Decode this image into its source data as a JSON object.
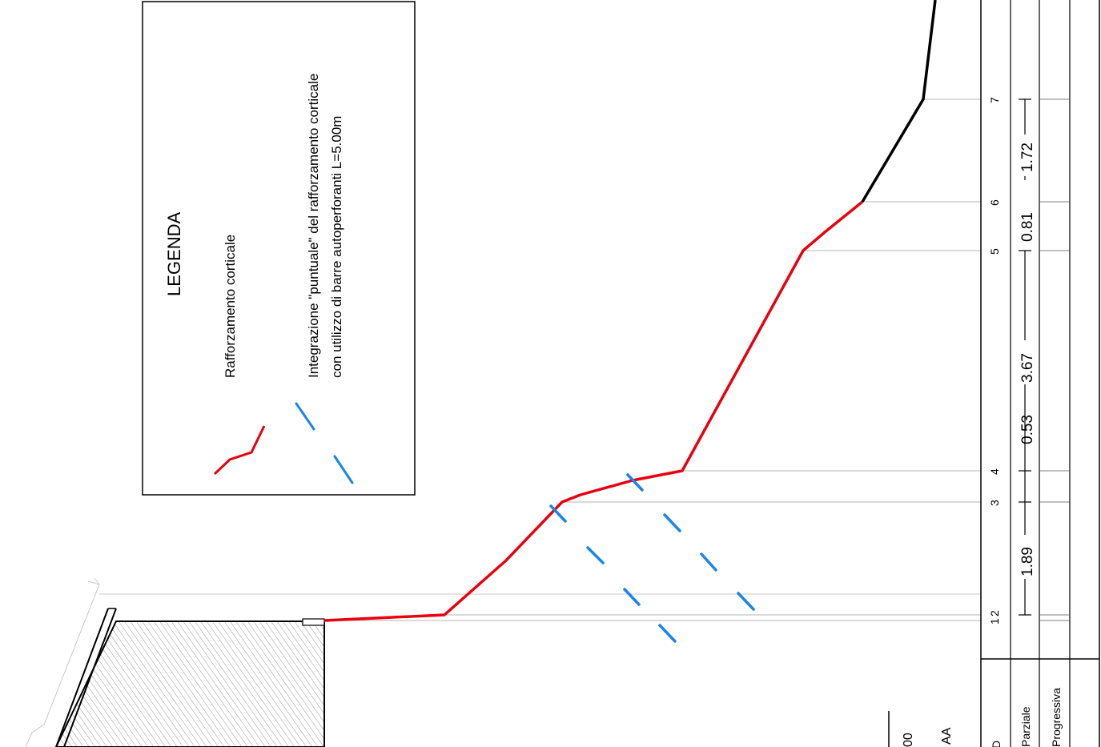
{
  "legend": {
    "title": "LEGENDA",
    "item1": "Rafforzamento corticale",
    "item2_line1": "Integrazione \"puntuale\" del rafforzamento corticale",
    "item2_line2": "con utilizzo di barre autoperforanti L=5.00m"
  },
  "stations": [
    "1",
    "2",
    "3",
    "4",
    "5",
    "6",
    "7"
  ],
  "partials": [
    "1.89",
    "0.53",
    "3.67",
    "0.81",
    "1.72"
  ],
  "table": {
    "row_parziale": "Parziale",
    "row_progressiva": "Progressiva",
    "row_partial_prefix": "D",
    "small_label": "AA",
    "small_number": "00"
  },
  "colors": {
    "reinforcement": "#e8000f",
    "bars": "#1a84e8",
    "profile": "#000000"
  }
}
